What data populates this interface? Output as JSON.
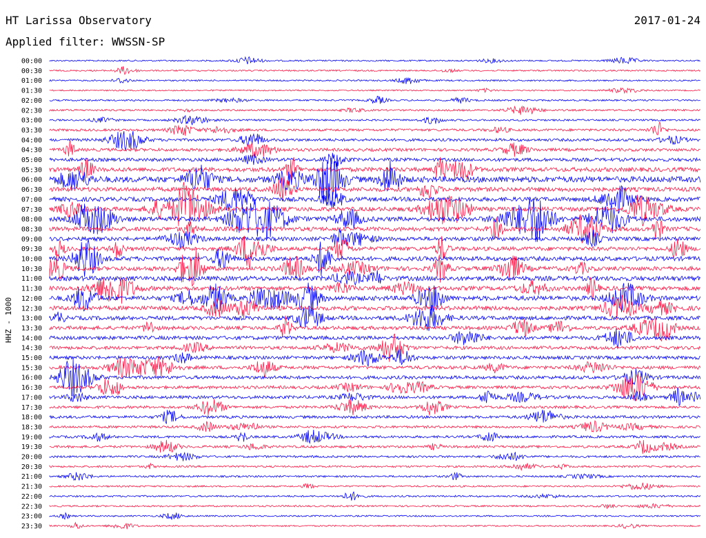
{
  "header": {
    "station": "HT Larissa Observatory",
    "date": "2017-01-24",
    "filter_label": "Applied filter:",
    "filter_value": "WWSSN-SP"
  },
  "colors": {
    "trace_odd": "#ff1744",
    "trace_even": "#0000ff",
    "text": "#000000",
    "background": "#ffffff"
  },
  "chart_data": {
    "type": "line",
    "ylabel": "HHZ - 1000",
    "channel": "HHZ",
    "x": {
      "unit": "minutes",
      "range": [
        0,
        30
      ]
    },
    "rows": [
      {
        "time": "00:00"
      },
      {
        "time": "00:30"
      },
      {
        "time": "01:00"
      },
      {
        "time": "01:30"
      },
      {
        "time": "02:00"
      },
      {
        "time": "02:30"
      },
      {
        "time": "03:00"
      },
      {
        "time": "03:30"
      },
      {
        "time": "04:00"
      },
      {
        "time": "04:30"
      },
      {
        "time": "05:00"
      },
      {
        "time": "05:30"
      },
      {
        "time": "06:00"
      },
      {
        "time": "06:30"
      },
      {
        "time": "07:00"
      },
      {
        "time": "07:30"
      },
      {
        "time": "08:00"
      },
      {
        "time": "08:30"
      },
      {
        "time": "09:00"
      },
      {
        "time": "09:30"
      },
      {
        "time": "10:00"
      },
      {
        "time": "10:30"
      },
      {
        "time": "11:00"
      },
      {
        "time": "11:30"
      },
      {
        "time": "12:00"
      },
      {
        "time": "12:30"
      },
      {
        "time": "13:00"
      },
      {
        "time": "13:30"
      },
      {
        "time": "14:00"
      },
      {
        "time": "14:30"
      },
      {
        "time": "15:00"
      },
      {
        "time": "15:30"
      },
      {
        "time": "16:00"
      },
      {
        "time": "16:30"
      },
      {
        "time": "17:00"
      },
      {
        "time": "17:30"
      },
      {
        "time": "18:00"
      },
      {
        "time": "18:30"
      },
      {
        "time": "19:00"
      },
      {
        "time": "19:30"
      },
      {
        "time": "20:00"
      },
      {
        "time": "20:30"
      },
      {
        "time": "21:00"
      },
      {
        "time": "21:30"
      },
      {
        "time": "22:00"
      },
      {
        "time": "22:30"
      },
      {
        "time": "23:00"
      },
      {
        "time": "23:30"
      }
    ],
    "activity": [
      0.15,
      0.15,
      0.15,
      0.12,
      0.18,
      0.2,
      0.2,
      0.3,
      0.35,
      0.4,
      0.45,
      0.6,
      0.85,
      0.6,
      0.6,
      0.6,
      0.65,
      0.6,
      0.55,
      0.55,
      0.6,
      0.6,
      0.65,
      0.6,
      0.65,
      0.6,
      0.55,
      0.5,
      0.5,
      0.45,
      0.45,
      0.45,
      0.45,
      0.4,
      0.4,
      0.35,
      0.35,
      0.3,
      0.3,
      0.3,
      0.25,
      0.22,
      0.2,
      0.18,
      0.18,
      0.18,
      0.15,
      0.15
    ]
  }
}
